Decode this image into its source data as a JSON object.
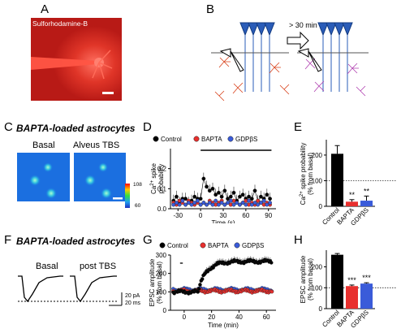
{
  "panels": {
    "A": {
      "label": "A",
      "dye_label": "Sulforhodamine-B"
    },
    "B": {
      "label": "B",
      "time_label": "> 30 min"
    },
    "C": {
      "label": "C",
      "title": "BAPTA-loaded astrocytes",
      "img_labels": [
        "Basal",
        "Alveus TBS"
      ],
      "scale_max": "108",
      "scale_min": "60"
    },
    "D": {
      "label": "D",
      "ylabel": "Ca2+ spike probability",
      "xlabel": "Time (s)",
      "legend": [
        "Control",
        "BAPTA",
        "GDPβS"
      ]
    },
    "E": {
      "label": "E",
      "ylabel": "Ca2+ spike probability (% from basal)",
      "categories": [
        "Control",
        "BAPTA",
        "GDPβS"
      ],
      "sig": [
        "",
        "**",
        "**"
      ]
    },
    "F": {
      "label": "F",
      "title": "BAPTA-loaded astrocytes",
      "trace_labels": [
        "Basal",
        "post TBS"
      ],
      "scalebar_pa": "20 pA",
      "scalebar_ms": "20 ms"
    },
    "G": {
      "label": "G",
      "ylabel": "EPSC amplitude (% from basal)",
      "xlabel": "Time (min)",
      "legend": [
        "Control",
        "BAPTA",
        "GDPβS"
      ]
    },
    "H": {
      "label": "H",
      "ylabel": "EPSC amplitude (% from basal)",
      "categories": [
        "Control",
        "BAPTA",
        "GDPβS"
      ],
      "sig": [
        "",
        "***",
        "***"
      ]
    }
  },
  "colors": {
    "control": "#000000",
    "bapta": "#e8302e",
    "gdp": "#3a5bd9"
  },
  "chart_data": [
    {
      "type": "line",
      "panel": "D",
      "ylabel": "Ca2+ spike probability",
      "xlabel": "Time (s)",
      "xlim": [
        -40,
        100
      ],
      "ylim": [
        0,
        0.3
      ],
      "xticks": [
        -30,
        0,
        30,
        60,
        90
      ],
      "yticks": [
        0.0,
        0.1,
        0.2
      ],
      "series": [
        {
          "name": "Control",
          "x": [
            -36,
            -32,
            -28,
            -24,
            -20,
            -16,
            -12,
            -8,
            -4,
            0,
            4,
            8,
            12,
            16,
            20,
            24,
            28,
            32,
            36,
            40,
            44,
            48,
            52,
            56,
            60,
            64,
            68,
            72,
            76,
            80,
            84,
            88,
            92
          ],
          "values": [
            0.04,
            0.06,
            0.03,
            0.05,
            0.05,
            0.03,
            0.04,
            0.06,
            0.05,
            0.05,
            0.15,
            0.11,
            0.09,
            0.1,
            0.07,
            0.08,
            0.06,
            0.09,
            0.05,
            0.06,
            0.08,
            0.04,
            0.06,
            0.07,
            0.05,
            0.06,
            0.05,
            0.09,
            0.04,
            0.06,
            0.05,
            0.07,
            0.05
          ]
        },
        {
          "name": "BAPTA",
          "x": [
            -36,
            -32,
            -28,
            -24,
            -20,
            -16,
            -12,
            -8,
            -4,
            0,
            4,
            8,
            12,
            16,
            20,
            24,
            28,
            32,
            36,
            40,
            44,
            48,
            52,
            56,
            60,
            64,
            68,
            72,
            76,
            80,
            84,
            88,
            92
          ],
          "values": [
            0.03,
            0.02,
            0.04,
            0.03,
            0.02,
            0.04,
            0.03,
            0.02,
            0.03,
            0.02,
            0.03,
            0.02,
            0.04,
            0.03,
            0.02,
            0.03,
            0.04,
            0.02,
            0.03,
            0.02,
            0.04,
            0.03,
            0.02,
            0.03,
            0.04,
            0.02,
            0.03,
            0.02,
            0.04,
            0.03,
            0.02,
            0.03,
            0.02
          ]
        },
        {
          "name": "GDPβS",
          "x": [
            -36,
            -32,
            -28,
            -24,
            -20,
            -16,
            -12,
            -8,
            -4,
            0,
            4,
            8,
            12,
            16,
            20,
            24,
            28,
            32,
            36,
            40,
            44,
            48,
            52,
            56,
            60,
            64,
            68,
            72,
            76,
            80,
            84,
            88,
            92
          ],
          "values": [
            0.02,
            0.03,
            0.02,
            0.04,
            0.02,
            0.03,
            0.02,
            0.03,
            0.04,
            0.02,
            0.03,
            0.02,
            0.03,
            0.02,
            0.04,
            0.02,
            0.03,
            0.02,
            0.03,
            0.04,
            0.02,
            0.03,
            0.02,
            0.03,
            0.02,
            0.04,
            0.02,
            0.03,
            0.02,
            0.03,
            0.04,
            0.02,
            0.03
          ]
        }
      ]
    },
    {
      "type": "bar",
      "panel": "E",
      "categories": [
        "Control",
        "BAPTA",
        "GDPβS"
      ],
      "values": [
        205,
        18,
        22
      ],
      "errors": [
        32,
        8,
        18
      ],
      "ylim": [
        0,
        260
      ],
      "yticks": [
        0,
        100,
        200
      ],
      "reference_line": 100
    },
    {
      "type": "scatter",
      "panel": "G",
      "xlabel": "Time (min)",
      "ylabel": "EPSC amplitude (% from basal)",
      "xlim": [
        -10,
        67
      ],
      "ylim": [
        0,
        300
      ],
      "xticks": [
        0,
        20,
        40,
        60
      ],
      "yticks": [
        0,
        100,
        200,
        300
      ],
      "series": [
        {
          "name": "Control",
          "segments": [
            {
              "x0": -8,
              "x1": 10,
              "base": 100
            },
            {
              "x0": 10,
              "x1": 64,
              "rise_to": 265,
              "tau": 6
            }
          ]
        },
        {
          "name": "BAPTA",
          "segments": [
            {
              "x0": -8,
              "x1": 64,
              "base": 105
            }
          ]
        },
        {
          "name": "GDPβS",
          "segments": [
            {
              "x0": -8,
              "x1": 64,
              "base": 112
            }
          ]
        }
      ]
    },
    {
      "type": "bar",
      "panel": "H",
      "categories": [
        "Control",
        "BAPTA",
        "GDPβS"
      ],
      "values": [
        258,
        108,
        120
      ],
      "errors": [
        6,
        5,
        4
      ],
      "ylim": [
        0,
        280
      ],
      "yticks": [
        0,
        100,
        200
      ],
      "reference_line": 100
    }
  ]
}
